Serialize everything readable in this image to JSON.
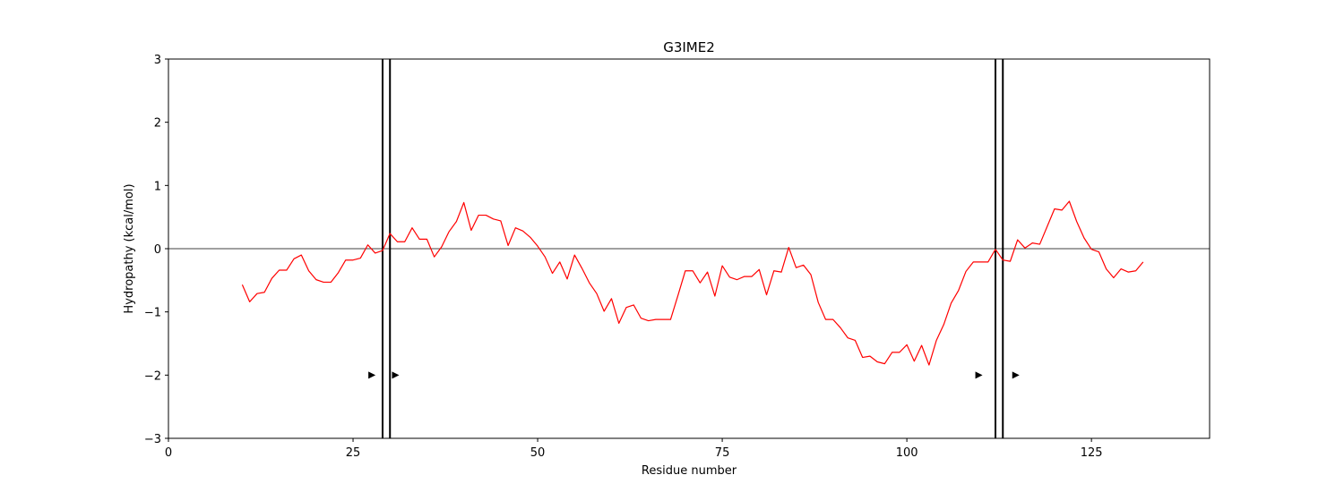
{
  "chart_data": {
    "type": "line",
    "title": "G3IME2",
    "xlabel": "Residue number",
    "ylabel": "Hydropathy (kcal/mol)",
    "xlim": [
      0,
      141
    ],
    "ylim": [
      -3,
      3
    ],
    "xticks": [
      0,
      25,
      50,
      75,
      100,
      125
    ],
    "yticks": [
      -3,
      -2,
      -1,
      0,
      1,
      2,
      3
    ],
    "xtick_labels": [
      "0",
      "25",
      "50",
      "75",
      "100",
      "125"
    ],
    "ytick_labels": [
      "−3",
      "−2",
      "−1",
      "0",
      "1",
      "2",
      "3"
    ],
    "grid": false,
    "zero_line": 0,
    "series": [
      {
        "color": "#ff0000",
        "x": [
          10,
          11,
          12,
          13,
          14,
          15,
          16,
          17,
          18,
          19,
          20,
          21,
          22,
          23,
          24,
          25,
          26,
          27,
          28,
          29,
          30,
          31,
          32,
          33,
          34,
          35,
          36,
          37,
          38,
          39,
          40,
          41,
          42,
          43,
          44,
          45,
          46,
          47,
          48,
          49,
          50,
          51,
          52,
          53,
          54,
          55,
          56,
          57,
          58,
          59,
          60,
          61,
          62,
          63,
          64,
          65,
          66,
          67,
          68,
          69,
          70,
          71,
          72,
          73,
          74,
          75,
          76,
          77,
          78,
          79,
          80,
          81,
          82,
          83,
          84,
          85,
          86,
          87,
          88,
          89,
          90,
          91,
          92,
          93,
          94,
          95,
          96,
          97,
          98,
          99,
          100,
          101,
          102,
          103,
          104,
          105,
          106,
          107,
          108,
          109,
          110,
          111,
          112,
          113,
          114,
          115,
          116,
          117,
          118,
          119,
          120,
          121,
          122,
          123,
          124,
          125,
          126,
          127,
          128,
          129,
          130,
          131,
          132
        ],
        "y": [
          -0.57,
          -0.84,
          -0.71,
          -0.69,
          -0.47,
          -0.34,
          -0.34,
          -0.16,
          -0.1,
          -0.35,
          -0.49,
          -0.53,
          -0.53,
          -0.38,
          -0.18,
          -0.18,
          -0.15,
          0.06,
          -0.07,
          -0.03,
          0.24,
          0.11,
          0.11,
          0.33,
          0.15,
          0.15,
          -0.13,
          0.03,
          0.27,
          0.43,
          0.73,
          0.29,
          0.53,
          0.53,
          0.47,
          0.44,
          0.05,
          0.33,
          0.28,
          0.18,
          0.04,
          -0.13,
          -0.39,
          -0.21,
          -0.48,
          -0.1,
          -0.31,
          -0.54,
          -0.71,
          -0.99,
          -0.79,
          -1.18,
          -0.93,
          -0.89,
          -1.1,
          -1.14,
          -1.12,
          -1.12,
          -1.12,
          -0.74,
          -0.35,
          -0.35,
          -0.54,
          -0.37,
          -0.75,
          -0.27,
          -0.45,
          -0.49,
          -0.44,
          -0.44,
          -0.33,
          -0.73,
          -0.35,
          -0.37,
          0.02,
          -0.3,
          -0.26,
          -0.41,
          -0.85,
          -1.12,
          -1.12,
          -1.25,
          -1.41,
          -1.45,
          -1.72,
          -1.7,
          -1.79,
          -1.82,
          -1.64,
          -1.64,
          -1.52,
          -1.78,
          -1.53,
          -1.84,
          -1.45,
          -1.2,
          -0.86,
          -0.66,
          -0.36,
          -0.21,
          -0.21,
          -0.21,
          -0.01,
          -0.18,
          -0.2,
          0.14,
          0.01,
          0.09,
          0.07,
          0.35,
          0.63,
          0.61,
          0.75,
          0.43,
          0.17,
          -0.01,
          -0.05,
          -0.32,
          -0.46,
          -0.32,
          -0.37,
          -0.35,
          -0.21
        ]
      }
    ],
    "vertical_lines": [
      29,
      30,
      112,
      113
    ],
    "markers": [
      {
        "x": 27.5,
        "y": -2
      },
      {
        "x": 30.7,
        "y": -2
      },
      {
        "x": 109.7,
        "y": -2
      },
      {
        "x": 114.7,
        "y": -2
      }
    ]
  }
}
